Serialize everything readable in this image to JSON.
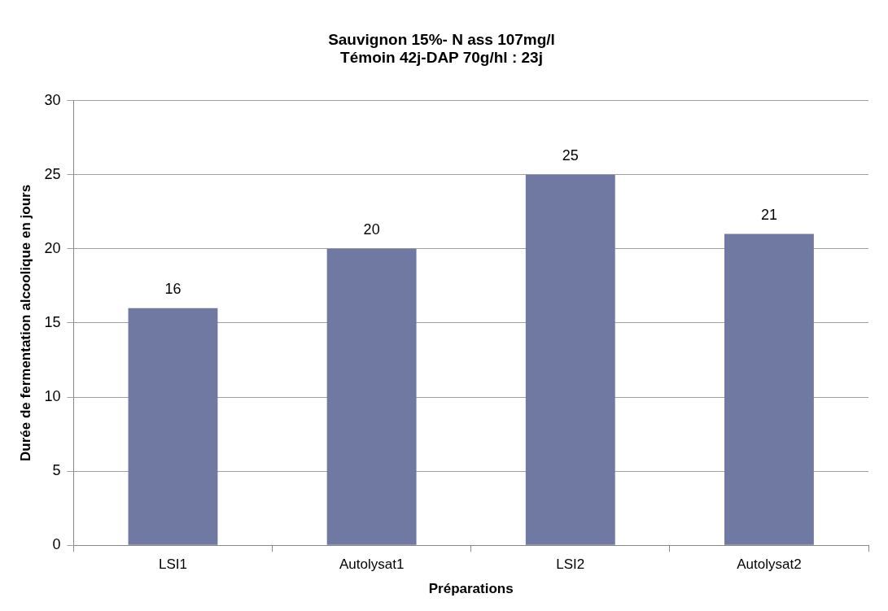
{
  "chart_data": {
    "type": "bar",
    "title": "Sauvignon 15%- N ass 107mg/l\nTémoin 42j-DAP 70g/hl : 23j",
    "xlabel": "Préparations",
    "ylabel": "Durée de fermentation alcoolique en jours",
    "categories": [
      "LSI1",
      "Autolysat1",
      "LSI2",
      "Autolysat2"
    ],
    "values": [
      16,
      20,
      25,
      21
    ],
    "color": "#7079a1",
    "ylim": [
      0,
      30
    ],
    "yticks": [
      0,
      5,
      10,
      15,
      20,
      25,
      30
    ],
    "grid": "y",
    "legend": false,
    "data_labels": true
  }
}
